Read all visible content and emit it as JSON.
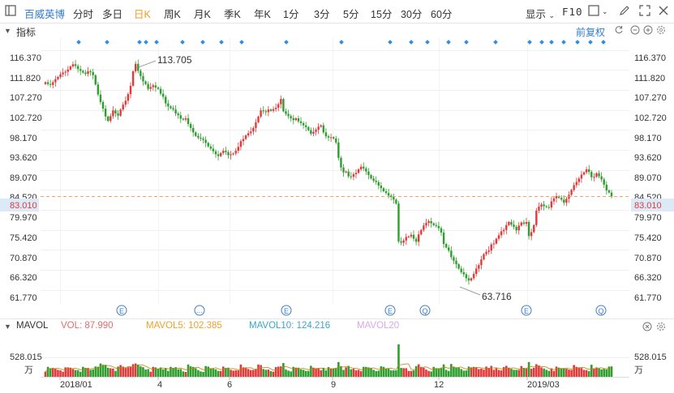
{
  "toolbar": {
    "stock_name": "百威英博",
    "periods": [
      "分时",
      "多日",
      "日K",
      "周K",
      "月K",
      "季K",
      "年K",
      "1分",
      "3分",
      "5分",
      "15分",
      "30分",
      "60分"
    ],
    "active_period": "日K",
    "display_label": "显示",
    "f10_label": "F10"
  },
  "indicator_bar": {
    "label": "指标",
    "adjust_label": "前复权"
  },
  "price_axis": {
    "ticks": [
      "116.370",
      "111.820",
      "107.270",
      "102.720",
      "98.170",
      "93.620",
      "89.070",
      "84.520",
      "79.970",
      "75.420",
      "70.870",
      "66.320",
      "61.770"
    ],
    "current_price": "83.010",
    "current_color": "#e03a3a"
  },
  "annotations": {
    "high_label": "113.705",
    "low_label": "63.716"
  },
  "event_markers": [
    "E",
    "…",
    "E",
    "E",
    "Q",
    "E",
    "Q"
  ],
  "volume": {
    "label": "MAVOL",
    "vol": "VOL: 87.990",
    "mavol5": "MAVOL5: 102.385",
    "mavol10": "MAVOL10: 124.216",
    "mavol20": "MAVOL20",
    "axis_value": "528.015",
    "axis_unit": "万",
    "colors": {
      "vol": "#e86a6a",
      "mavol5": "#f0a02a",
      "mavol10": "#3aa6c9",
      "mavol20": "#d9a9e8"
    }
  },
  "time_axis": [
    "2018/01",
    "4",
    "6",
    "9",
    "12",
    "2019/03"
  ],
  "colors": {
    "up": "#e03a3a",
    "down": "#2e9e2e",
    "accent": "#f59a23",
    "brand": "#2f7bd1"
  },
  "chart_data": {
    "type": "candlestick",
    "y_range": [
      59.5,
      118.5
    ],
    "current": 83.01,
    "closes": [
      109,
      108.6,
      108.4,
      109,
      109.7,
      110.2,
      110.8,
      111.2,
      111.4,
      111.9,
      112.6,
      113.1,
      112.7,
      112,
      111.6,
      111.2,
      110.9,
      111.5,
      111.3,
      110.6,
      108.5,
      106.2,
      104.5,
      103,
      101.2,
      100.2,
      101.3,
      102.6,
      101.9,
      101.4,
      102.8,
      103.9,
      104.8,
      106.3,
      108.2,
      111.5,
      113.2,
      111.6,
      110.4,
      109.2,
      108.6,
      107.5,
      107.9,
      108.3,
      107.8,
      107.5,
      106.4,
      105.7,
      104.2,
      103.5,
      103.1,
      102.8,
      101.9,
      101.5,
      100.7,
      100.5,
      100.8,
      99.5,
      98.6,
      97.6,
      96.8,
      96.4,
      96.2,
      95.9,
      95.2,
      94.4,
      93.9,
      93.3,
      92.6,
      92.2,
      92.9,
      93.4,
      93.1,
      92.4,
      92.6,
      92.8,
      93.4,
      94.3,
      95.6,
      96.1,
      96.9,
      97.4,
      97.8,
      98.6,
      99.9,
      101.2,
      102.6,
      102.4,
      102.2,
      102.8,
      102.5,
      102.9,
      103.2,
      104,
      105.2,
      102.4,
      101.8,
      101.3,
      100.8,
      100.4,
      100.8,
      100.1,
      99.7,
      99.2,
      98.8,
      98.1,
      97.3,
      97.7,
      98.2,
      98.9,
      99.2,
      97.6,
      96.7,
      96.4,
      96.5,
      96.2,
      95.3,
      91.8,
      89.6,
      88.5,
      88.7,
      87.6,
      87.5,
      88.1,
      88.4,
      89.2,
      89.8,
      89.4,
      88.7,
      87.9,
      87.1,
      86.6,
      86.3,
      85.5,
      84.9,
      84.2,
      83.8,
      83.2,
      82.9,
      82.3,
      81.4,
      72.8,
      72.5,
      73,
      73.8,
      73.9,
      74.3,
      73.4,
      72.7,
      74.4,
      75.4,
      76.4,
      77,
      77.4,
      76.9,
      76.5,
      76.3,
      75.8,
      74.8,
      72.2,
      71.4,
      70.7,
      69.2,
      68.4,
      67.6,
      66.6,
      65.8,
      65.3,
      64.4,
      63.9,
      64.4,
      65.4,
      66.6,
      67.4,
      68.7,
      69.9,
      70.4,
      70.7,
      72.1,
      72.3,
      73.4,
      74.2,
      75.1,
      75.4,
      76.5,
      77.2,
      76.6,
      76.1,
      75.3,
      76.4,
      77.1,
      76.8,
      77.2,
      74,
      74.9,
      76.5,
      79.8,
      80.7,
      81.2,
      80.8,
      80.6,
      80.5,
      81.9,
      82.6,
      83.1,
      82.7,
      82.3,
      81.6,
      82.5,
      83.4,
      84.5,
      85.6,
      86.3,
      87.1,
      88,
      88.5,
      89.2,
      88.6,
      87.4,
      87.5,
      88.3,
      87.6,
      86.9,
      85.7,
      84.4,
      83.9,
      83.01
    ]
  }
}
